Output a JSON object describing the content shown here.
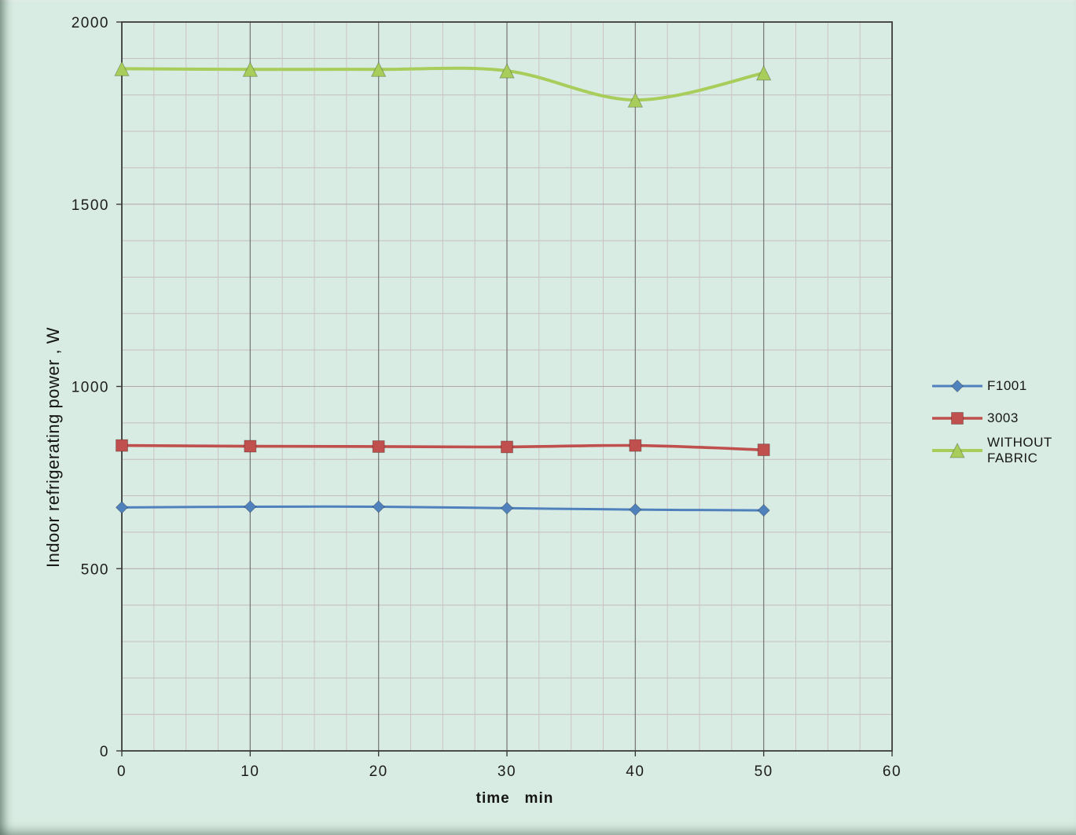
{
  "page": {
    "bg_color": "#d9ece3"
  },
  "chart_data": {
    "type": "line",
    "x": [
      0,
      10,
      20,
      30,
      40,
      50
    ],
    "series": [
      {
        "name": "F1001",
        "color": "#4f81bd",
        "marker": "diamond",
        "values": [
          668,
          670,
          670,
          666,
          662,
          660
        ]
      },
      {
        "name": "3003",
        "color": "#c0504d",
        "marker": "square",
        "values": [
          838,
          836,
          835,
          834,
          838,
          826
        ]
      },
      {
        "name": "WITHOUT FABRIC",
        "color": "#a8cd5b",
        "marker": "triangle",
        "values": [
          1872,
          1870,
          1870,
          1866,
          1786,
          1860
        ]
      }
    ],
    "title": "",
    "xlabel": "time   min",
    "ylabel": "Indoor refrigerating power , W",
    "xlim": [
      0,
      60
    ],
    "ylim": [
      0,
      2000
    ],
    "x_major_ticks": [
      0,
      10,
      20,
      30,
      40,
      50,
      60
    ],
    "y_major_ticks": [
      0,
      500,
      1000,
      1500,
      2000
    ],
    "x_minor_step": 2.5,
    "y_minor_step": 100,
    "grid": "on",
    "legend_position": "right"
  }
}
